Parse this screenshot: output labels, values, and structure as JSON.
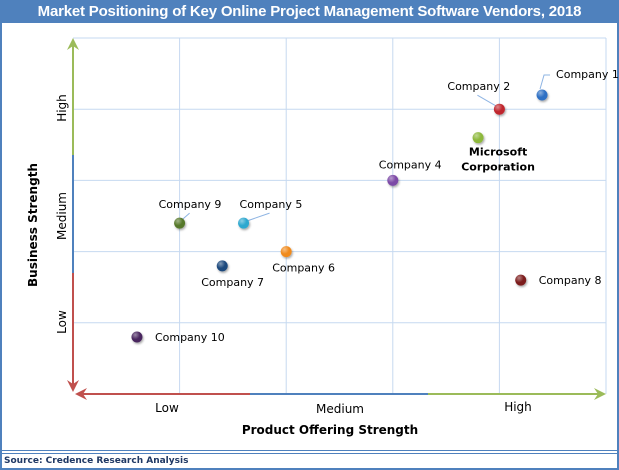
{
  "title": "Market Positioning of Key Online Project Management Software  Vendors, 2018",
  "source": "Source: Credence Research Analysis",
  "colors": {
    "frame": "#4f81bd",
    "grid": "#c6d9f0",
    "axis_low": "#c0504d",
    "axis_medium": "#4f81bd",
    "axis_high": "#9bbb59"
  },
  "chart_data": {
    "type": "scatter",
    "title": "Market Positioning of Key Online Project Management Software  Vendors, 2018",
    "xlabel": "Product Offering Strength",
    "ylabel": "Business Strength",
    "xlim": [
      0,
      5
    ],
    "ylim": [
      0,
      5
    ],
    "grid": true,
    "x_bands": [
      "Low",
      "Medium",
      "High"
    ],
    "y_bands": [
      "Low",
      "Medium",
      "High"
    ],
    "points": [
      {
        "name": "Company 1",
        "x": 4.4,
        "y": 4.2,
        "color": "#2e6fc4",
        "label_pos": "upper-right-leader",
        "bold": false
      },
      {
        "name": "Company 2",
        "x": 4.0,
        "y": 4.0,
        "color": "#c0282d",
        "label_pos": "upper-left-leader",
        "bold": false
      },
      {
        "name": "Microsoft Corporation",
        "label_lines": [
          "Microsoft",
          "Corporation"
        ],
        "x": 3.8,
        "y": 3.6,
        "color": "#8db83a",
        "label_pos": "below",
        "bold": true
      },
      {
        "name": "Company 4",
        "x": 3.0,
        "y": 3.0,
        "color": "#7b48a6",
        "label_pos": "above",
        "bold": false
      },
      {
        "name": "Company 5",
        "x": 1.6,
        "y": 2.4,
        "color": "#2fa8cf",
        "label_pos": "upper-right-leader",
        "bold": false
      },
      {
        "name": "Company 6",
        "x": 2.0,
        "y": 2.0,
        "color": "#f08a1e",
        "label_pos": "below",
        "bold": false
      },
      {
        "name": "Company 7",
        "x": 1.4,
        "y": 1.8,
        "color": "#1f497d",
        "label_pos": "below",
        "bold": false
      },
      {
        "name": "Company 8",
        "x": 4.2,
        "y": 1.6,
        "color": "#7b1b1b",
        "label_pos": "right",
        "bold": false
      },
      {
        "name": "Company 9",
        "x": 1.0,
        "y": 2.4,
        "color": "#56782a",
        "label_pos": "above-leader",
        "bold": false
      },
      {
        "name": "Company 10",
        "x": 0.6,
        "y": 0.8,
        "color": "#48285e",
        "label_pos": "right",
        "bold": false
      }
    ]
  }
}
